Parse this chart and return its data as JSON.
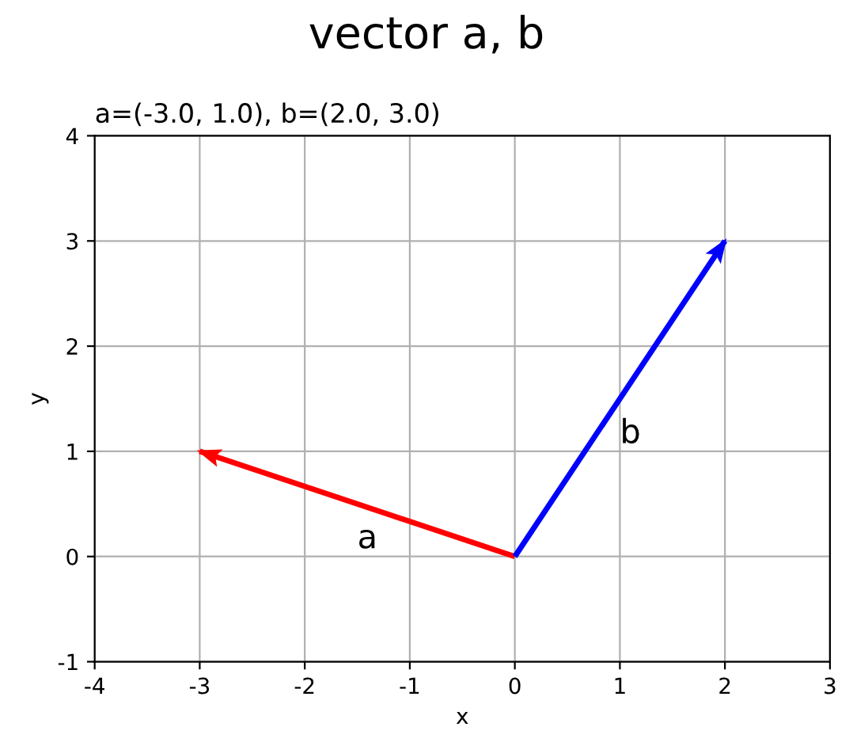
{
  "chart_data": {
    "type": "line",
    "title": "vector a, b",
    "subtitle": "a=(-3.0, 1.0), b=(2.0, 3.0)",
    "xlabel": "x",
    "ylabel": "y",
    "series": [
      {
        "x": [
          0,
          -3
        ],
        "values": [
          0,
          1
        ],
        "color": "#ff0000"
      },
      {
        "x": [
          0,
          2
        ],
        "values": [
          0,
          3
        ],
        "color": "#0000ff"
      }
    ],
    "annotations": [
      "a",
      "b"
    ],
    "xlim": [
      -4,
      3
    ],
    "ylim": [
      -1,
      4
    ],
    "xticks": [
      -4,
      -3,
      -2,
      -1,
      0,
      1,
      2,
      3
    ],
    "yticks": [
      -1,
      0,
      1,
      2,
      3,
      4
    ],
    "grid": true,
    "marker": "none",
    "line_style": "solid"
  }
}
